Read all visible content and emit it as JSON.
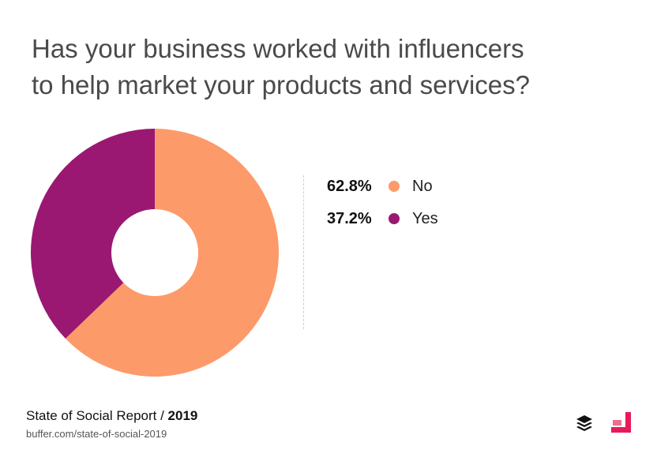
{
  "title": {
    "line1": "Has your business worked with influencers",
    "line2": "to help market your products and services?"
  },
  "chart_data": {
    "type": "pie",
    "donut": true,
    "slices": [
      {
        "label": "No",
        "value": 62.8,
        "display": "62.8%",
        "color": "#FD9A6A"
      },
      {
        "label": "Yes",
        "value": 37.2,
        "display": "37.2%",
        "color": "#9A1872"
      }
    ],
    "legend_position": "right"
  },
  "footer": {
    "report": "State of Social Report / ",
    "year": "2019",
    "url": "buffer.com/state-of-social-2019"
  },
  "icons": {
    "left": "buffer-logo-icon",
    "right": "brand-logo-icon"
  }
}
